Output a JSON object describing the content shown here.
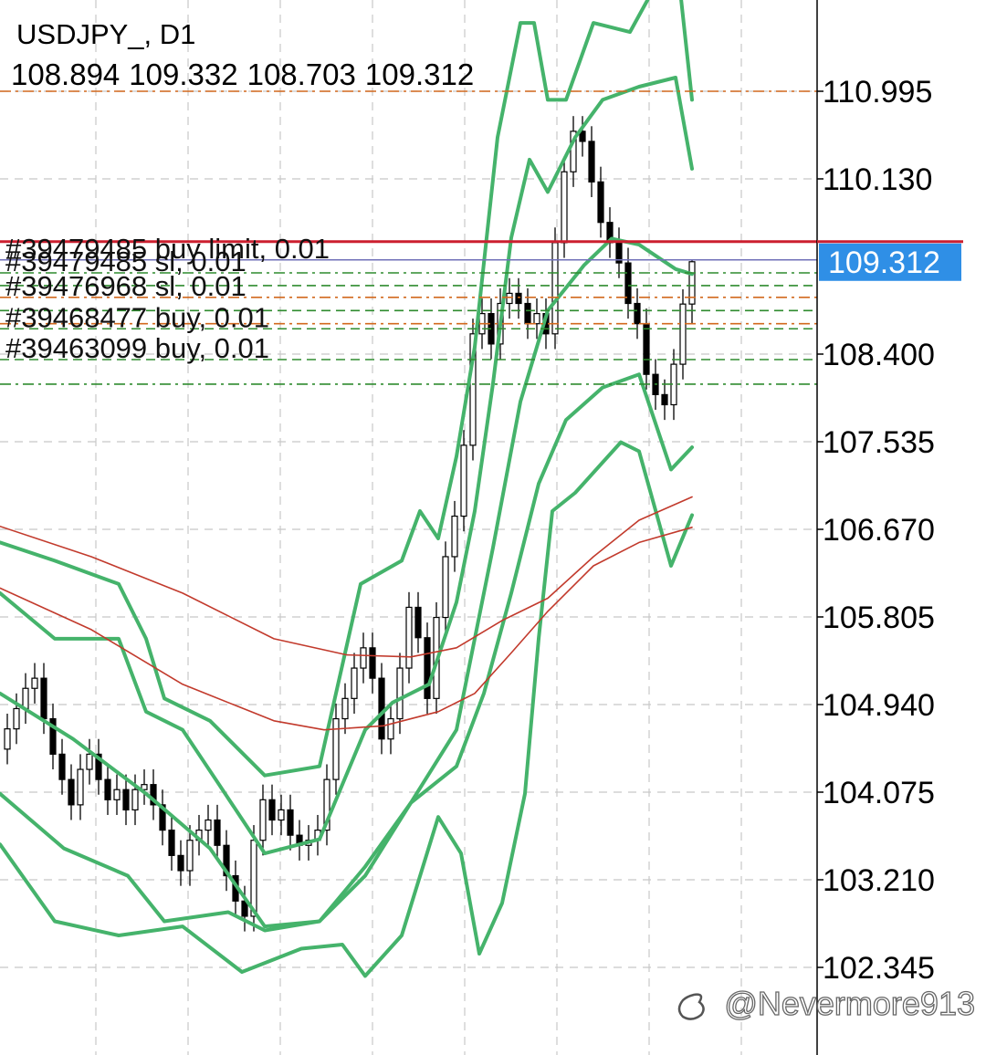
{
  "chart_data": {
    "type": "candlestick",
    "title": "USDJPY_, D1",
    "ohlc_header": [
      108.894,
      109.332,
      108.703,
      109.312
    ],
    "current_price": 109.312,
    "current_price_color": "#2f8fe6",
    "xlim": [
      -0.8,
      88.7
    ],
    "ylim": [
      101.48,
      111.896
    ],
    "yticks": [
      110.995,
      {
        "value": 110.13,
        "label": "110.130"
      },
      {
        "value": 108.4,
        "label": "108.400"
      },
      107.535,
      {
        "value": 106.67,
        "label": "106.670"
      },
      105.805,
      {
        "value": 104.94,
        "label": "104.940"
      },
      104.075,
      {
        "value": 103.21,
        "label": "103.210"
      },
      102.345
    ],
    "grid": true,
    "candles": {
      "up_color": "#ffffff",
      "down_color": "#000000",
      "open": [
        104.5,
        104.7,
        104.9,
        105.1,
        105.2,
        104.8,
        104.45,
        104.2,
        103.95,
        104.3,
        104.45,
        104.2,
        104.0,
        104.1,
        103.9,
        104.1,
        104.15,
        103.95,
        103.7,
        103.45,
        103.3,
        103.6,
        103.7,
        103.8,
        103.55,
        103.25,
        103.0,
        102.85,
        103.6,
        104.0,
        103.8,
        103.9,
        103.65,
        103.55,
        103.6,
        103.7,
        104.2,
        104.8,
        105.0,
        105.3,
        105.5,
        105.2,
        104.6,
        104.8,
        105.3,
        105.9,
        105.6,
        105.0,
        105.8,
        106.4,
        106.8,
        107.5,
        108.6,
        108.8,
        108.5,
        108.9,
        109.0,
        108.9,
        108.7,
        108.8,
        108.6,
        109.5,
        110.2,
        110.6,
        110.5,
        110.1,
        109.7,
        109.5,
        109.3,
        108.9,
        108.7,
        108.2,
        108.0,
        107.9,
        108.3,
        108.894
      ],
      "high": [
        104.85,
        105.05,
        105.25,
        105.35,
        105.35,
        104.95,
        104.6,
        104.35,
        104.45,
        104.6,
        104.6,
        104.35,
        104.25,
        104.25,
        104.25,
        104.3,
        104.3,
        104.1,
        103.85,
        103.6,
        103.75,
        103.85,
        103.95,
        103.95,
        103.7,
        103.4,
        103.15,
        103.75,
        104.15,
        104.15,
        104.05,
        104.05,
        103.8,
        103.75,
        103.85,
        104.35,
        104.95,
        105.15,
        105.45,
        105.65,
        105.65,
        105.35,
        104.95,
        105.45,
        106.05,
        106.05,
        105.75,
        105.95,
        106.55,
        106.95,
        107.65,
        108.75,
        108.95,
        108.95,
        109.05,
        109.15,
        109.15,
        109.05,
        108.95,
        108.95,
        109.65,
        110.35,
        110.75,
        110.75,
        110.65,
        110.25,
        109.85,
        109.65,
        109.45,
        109.05,
        108.85,
        108.35,
        108.15,
        108.45,
        109.04,
        109.332
      ],
      "low": [
        104.35,
        104.55,
        104.75,
        104.95,
        104.65,
        104.3,
        104.05,
        103.8,
        103.8,
        104.15,
        104.05,
        103.85,
        103.85,
        103.75,
        103.75,
        103.95,
        103.8,
        103.55,
        103.3,
        103.15,
        103.15,
        103.45,
        103.55,
        103.4,
        103.1,
        102.85,
        102.7,
        102.7,
        103.45,
        103.65,
        103.65,
        103.5,
        103.4,
        103.4,
        103.45,
        103.55,
        104.05,
        104.65,
        104.85,
        105.15,
        105.05,
        104.45,
        104.45,
        104.65,
        105.15,
        105.45,
        104.85,
        104.85,
        105.65,
        106.25,
        106.65,
        107.35,
        108.45,
        108.35,
        108.35,
        108.75,
        108.75,
        108.55,
        108.55,
        108.45,
        108.45,
        109.35,
        110.05,
        110.35,
        109.95,
        109.55,
        109.35,
        109.15,
        108.75,
        108.55,
        108.05,
        107.85,
        107.75,
        107.75,
        108.15,
        108.703
      ],
      "close": [
        104.7,
        104.9,
        105.1,
        105.2,
        104.8,
        104.45,
        104.2,
        103.95,
        104.3,
        104.45,
        104.2,
        104.0,
        104.1,
        103.9,
        104.1,
        104.15,
        103.95,
        103.7,
        103.45,
        103.3,
        103.6,
        103.7,
        103.8,
        103.55,
        103.25,
        103.0,
        102.85,
        103.6,
        104.0,
        103.8,
        103.9,
        103.65,
        103.55,
        103.6,
        103.7,
        104.2,
        104.8,
        105.0,
        105.3,
        105.5,
        105.2,
        104.6,
        104.8,
        105.3,
        105.9,
        105.6,
        105.0,
        105.8,
        106.4,
        106.8,
        107.5,
        108.6,
        108.8,
        108.5,
        108.9,
        109.0,
        108.9,
        108.7,
        108.8,
        108.6,
        109.5,
        110.2,
        110.6,
        110.5,
        110.1,
        109.7,
        109.5,
        109.3,
        108.9,
        108.7,
        108.2,
        108.0,
        107.9,
        108.3,
        108.894,
        109.312
      ]
    },
    "overlays": [
      {
        "color": "#45b36b",
        "x": [
          -0.8,
          5.2,
          12.2,
          15.2,
          17.2,
          22.2,
          28.2,
          34.2,
          38.7,
          43.2,
          45.2,
          47.2,
          49.2,
          51.2,
          53.7,
          56.2,
          57.7,
          59.2,
          61.2,
          64.2,
          68.2,
          70.7,
          73.7,
          75
        ],
        "values": [
          106.54,
          106.36,
          106.13,
          105.59,
          105.0,
          104.78,
          104.24,
          104.33,
          106.13,
          106.36,
          106.85,
          106.58,
          107.39,
          108.47,
          110.54,
          111.67,
          111.67,
          110.91,
          110.91,
          111.67,
          111.58,
          111.99,
          111.99,
          110.91
        ]
      },
      {
        "color": "#45b36b",
        "x": [
          -0.8,
          5.2,
          12.2,
          15.2,
          19.2,
          23.2,
          28.2,
          34.2,
          39.2,
          42.2,
          46.2,
          49.2,
          51.2,
          53.2,
          55.2,
          57.2,
          59.2,
          62.2,
          65.2,
          69.2,
          73.2,
          75
        ],
        "values": [
          106.04,
          105.59,
          105.59,
          104.87,
          104.69,
          104.15,
          103.47,
          103.61,
          104.69,
          104.96,
          105.14,
          105.95,
          106.85,
          108.11,
          109.55,
          110.32,
          110.0,
          110.54,
          110.91,
          111.04,
          111.13,
          110.23
        ]
      },
      {
        "color": "#45b36b",
        "x": [
          -0.8,
          7.2,
          15.2,
          22.2,
          28.2,
          34.2,
          39.2,
          44.2,
          49.2,
          53.2,
          56.2,
          59.2,
          63.2,
          66.2,
          69.2,
          73.2,
          75
        ],
        "values": [
          105.05,
          104.6,
          104.06,
          103.52,
          102.75,
          102.8,
          103.25,
          103.97,
          104.69,
          106.49,
          107.93,
          108.83,
          109.28,
          109.54,
          109.48,
          109.24,
          109.19
        ]
      },
      {
        "color": "#45b36b",
        "x": [
          -0.8,
          6.2,
          13.2,
          17.2,
          24.2,
          28.2,
          34.2,
          39.2,
          44.2,
          49.2,
          52.2,
          55.2,
          58.2,
          61.2,
          65.2,
          69.2,
          72.7,
          75
        ],
        "values": [
          104.06,
          103.52,
          103.25,
          102.8,
          102.89,
          102.71,
          102.8,
          103.34,
          103.97,
          104.33,
          105.05,
          106.04,
          107.12,
          107.75,
          108.07,
          108.2,
          107.26,
          107.48
        ]
      },
      {
        "color": "#45b36b",
        "x": [
          -0.8,
          5.2,
          12.2,
          19.2,
          25.7,
          32.2,
          36.7,
          39.2,
          43.2,
          47.2,
          49.7,
          51.7,
          54.2,
          56.7,
          58.2,
          59.7,
          62.2,
          67.2,
          69.2,
          72.7,
          75
        ],
        "values": [
          103.56,
          102.8,
          102.66,
          102.75,
          102.3,
          102.53,
          102.57,
          102.26,
          102.66,
          103.83,
          103.47,
          102.48,
          102.98,
          104.06,
          105.59,
          106.85,
          107.03,
          107.53,
          107.44,
          106.31,
          106.81
        ]
      },
      {
        "color": "#c23a2c",
        "x": [
          -0.8,
          9.2,
          19.2,
          29.2,
          37.2,
          44.2,
          49.2,
          54.2,
          59.2,
          64.2,
          69.2,
          75
        ],
        "values": [
          106.7,
          106.4,
          106.04,
          105.59,
          105.43,
          105.41,
          105.5,
          105.77,
          105.99,
          106.4,
          106.76,
          106.99
        ]
      },
      {
        "color": "#c23a2c",
        "x": [
          -0.8,
          9.2,
          19.2,
          29.2,
          34.7,
          41.2,
          47.2,
          51.2,
          55.2,
          59.2,
          64.2,
          69.2,
          75
        ],
        "values": [
          106.09,
          105.68,
          105.14,
          104.78,
          104.69,
          104.73,
          104.87,
          105.05,
          105.45,
          105.86,
          106.31,
          106.54,
          106.69
        ]
      }
    ],
    "order_lines": [
      {
        "price": 110.995,
        "color": "#d2691e",
        "style": "dash-dot"
      },
      {
        "price": 109.51,
        "color": "#cc1f2f",
        "style": "solid"
      },
      {
        "price": 109.33,
        "color": "#7070b8",
        "style": "solid",
        "label": "#39479485 buy limit, 0.01"
      },
      {
        "price": 109.202,
        "color": "#2e8b2e",
        "style": "dash-dot",
        "label": "#39479485 sl, 0.01"
      },
      {
        "price": 109.076,
        "color": "#2e8b2e",
        "style": "dashed"
      },
      {
        "price": 108.96,
        "color": "#d2691e",
        "style": "dash-dot",
        "label": "#39476968 sl, 0.01"
      },
      {
        "price": 108.83,
        "color": "#2e8b2e",
        "style": "dashed"
      },
      {
        "price": 108.7,
        "color": "#d2691e",
        "style": "dash-dot"
      },
      {
        "price": 108.65,
        "color": "#2e8b2e",
        "style": "dashed",
        "label": "#39468477 buy, 0.01"
      },
      {
        "price": 108.346,
        "color": "#2e8b2e",
        "style": "dashed",
        "label": "#39463099 buy, 0.01"
      },
      {
        "price": 108.103,
        "color": "#2e8b2e",
        "style": "dash-dot"
      }
    ]
  },
  "watermark": "@Nevermore913"
}
